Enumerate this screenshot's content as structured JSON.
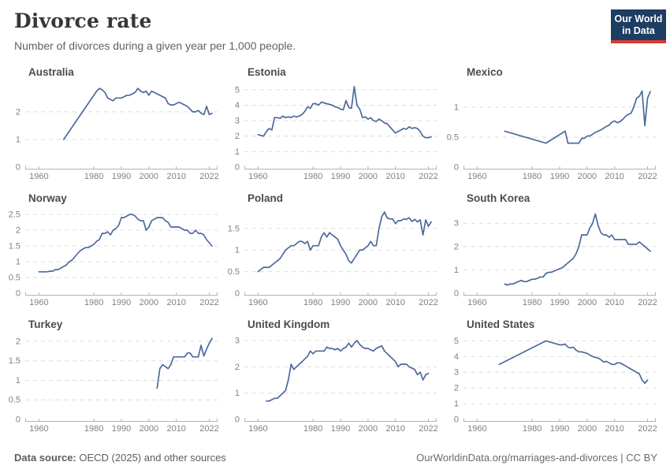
{
  "header": {
    "title": "Divorce rate",
    "subtitle": "Number of divorces during a given year per 1,000 people.",
    "logo": {
      "line1": "Our World",
      "line2": "in Data"
    }
  },
  "footer": {
    "source_label": "Data source:",
    "source_text": "OECD (2025) and other sources",
    "link_text": "OurWorldinData.org/marriages-and-divorces | CC BY"
  },
  "colors": {
    "line": "#4c6a9c",
    "grid": "#dcdcdc",
    "axis": "#b3b3b3",
    "tick": "#818181",
    "logo_bg": "#1d3d63",
    "logo_accent": "#d73c34"
  },
  "axis": {
    "xmin": 1955,
    "xmax": 2025
  },
  "chart_data": [
    {
      "type": "line",
      "title": "Australia",
      "yticks": [
        0,
        1,
        2
      ],
      "ymax": 3.08,
      "xticks": [
        1960,
        1980,
        1990,
        2000,
        2010,
        2022
      ],
      "x": [
        1969,
        1981,
        1982,
        1983,
        1984,
        1985,
        1986,
        1987,
        1988,
        1989,
        1990,
        1991,
        1992,
        1993,
        1994,
        1995,
        1996,
        1997,
        1998,
        1999,
        2000,
        2001,
        2002,
        2003,
        2004,
        2005,
        2006,
        2007,
        2008,
        2009,
        2010,
        2011,
        2012,
        2013,
        2014,
        2015,
        2016,
        2017,
        2018,
        2019,
        2020,
        2021,
        2022,
        2023
      ],
      "values": [
        1.0,
        2.75,
        2.85,
        2.8,
        2.7,
        2.5,
        2.45,
        2.4,
        2.5,
        2.5,
        2.5,
        2.55,
        2.6,
        2.6,
        2.65,
        2.7,
        2.85,
        2.75,
        2.7,
        2.75,
        2.6,
        2.75,
        2.7,
        2.65,
        2.6,
        2.55,
        2.5,
        2.3,
        2.25,
        2.25,
        2.3,
        2.35,
        2.3,
        2.25,
        2.2,
        2.1,
        2.0,
        2.0,
        2.05,
        1.95,
        1.9,
        2.2,
        1.9,
        1.95
      ]
    },
    {
      "type": "line",
      "title": "Estonia",
      "yticks": [
        0,
        1,
        2,
        3,
        4,
        5
      ],
      "ymax": 5.5,
      "xticks": [
        1960,
        1980,
        1990,
        2000,
        2010,
        2022
      ],
      "x": [
        1960,
        1961,
        1962,
        1963,
        1964,
        1965,
        1966,
        1967,
        1968,
        1969,
        1970,
        1971,
        1972,
        1973,
        1974,
        1975,
        1976,
        1977,
        1978,
        1979,
        1980,
        1981,
        1982,
        1983,
        1984,
        1985,
        1986,
        1987,
        1988,
        1989,
        1990,
        1991,
        1992,
        1993,
        1994,
        1995,
        1996,
        1997,
        1998,
        1999,
        2000,
        2001,
        2002,
        2003,
        2004,
        2005,
        2006,
        2007,
        2008,
        2009,
        2010,
        2011,
        2012,
        2013,
        2014,
        2015,
        2016,
        2017,
        2018,
        2019,
        2020,
        2021,
        2022,
        2023
      ],
      "values": [
        2.1,
        2.05,
        2.0,
        2.3,
        2.5,
        2.4,
        3.2,
        3.2,
        3.15,
        3.3,
        3.2,
        3.25,
        3.2,
        3.3,
        3.25,
        3.3,
        3.4,
        3.6,
        3.9,
        3.8,
        4.1,
        4.1,
        4.0,
        4.2,
        4.15,
        4.1,
        4.05,
        4.0,
        3.9,
        3.85,
        3.75,
        3.7,
        4.3,
        3.85,
        3.8,
        5.2,
        4.0,
        3.75,
        3.2,
        3.25,
        3.1,
        3.2,
        3.0,
        2.95,
        3.1,
        3.0,
        2.85,
        2.8,
        2.6,
        2.4,
        2.2,
        2.3,
        2.4,
        2.5,
        2.45,
        2.6,
        2.5,
        2.55,
        2.5,
        2.3,
        2.0,
        1.9,
        1.9,
        1.95
      ]
    },
    {
      "type": "line",
      "title": "Mexico",
      "yticks": [
        0,
        0.5,
        1
      ],
      "ymax": 1.42,
      "xticks": [
        1960,
        1980,
        1990,
        2000,
        2010,
        2022
      ],
      "x": [
        1970,
        1985,
        1992,
        1993,
        1997,
        1998,
        1999,
        2000,
        2001,
        2002,
        2003,
        2004,
        2005,
        2006,
        2007,
        2008,
        2009,
        2010,
        2011,
        2012,
        2013,
        2014,
        2015,
        2016,
        2017,
        2018,
        2019,
        2020,
        2021,
        2022,
        2023
      ],
      "values": [
        0.6,
        0.4,
        0.6,
        0.4,
        0.4,
        0.48,
        0.48,
        0.52,
        0.52,
        0.55,
        0.58,
        0.6,
        0.62,
        0.65,
        0.68,
        0.7,
        0.75,
        0.77,
        0.74,
        0.76,
        0.8,
        0.85,
        0.88,
        0.9,
        1.0,
        1.15,
        1.18,
        1.27,
        0.69,
        1.15,
        1.26
      ]
    },
    {
      "type": "line",
      "title": "Norway",
      "yticks": [
        0,
        0.5,
        1,
        1.5,
        2,
        2.5
      ],
      "ymax": 2.7,
      "xticks": [
        1960,
        1980,
        1990,
        2000,
        2010,
        2022
      ],
      "x": [
        1960,
        1961,
        1962,
        1963,
        1964,
        1965,
        1966,
        1967,
        1968,
        1969,
        1970,
        1971,
        1972,
        1973,
        1974,
        1975,
        1976,
        1977,
        1978,
        1979,
        1980,
        1981,
        1982,
        1983,
        1984,
        1985,
        1986,
        1987,
        1988,
        1989,
        1990,
        1991,
        1992,
        1993,
        1994,
        1995,
        1996,
        1997,
        1998,
        1999,
        2000,
        2001,
        2002,
        2003,
        2004,
        2005,
        2006,
        2007,
        2008,
        2009,
        2010,
        2011,
        2012,
        2013,
        2014,
        2015,
        2016,
        2017,
        2018,
        2019,
        2020,
        2021,
        2022,
        2023
      ],
      "values": [
        0.68,
        0.68,
        0.68,
        0.68,
        0.7,
        0.7,
        0.75,
        0.75,
        0.8,
        0.85,
        0.9,
        1.0,
        1.05,
        1.15,
        1.25,
        1.35,
        1.4,
        1.45,
        1.45,
        1.5,
        1.55,
        1.65,
        1.7,
        1.9,
        1.9,
        1.95,
        1.85,
        2.0,
        2.05,
        2.15,
        2.4,
        2.4,
        2.45,
        2.5,
        2.5,
        2.45,
        2.35,
        2.3,
        2.3,
        2.0,
        2.1,
        2.3,
        2.35,
        2.4,
        2.4,
        2.4,
        2.3,
        2.25,
        2.1,
        2.1,
        2.1,
        2.1,
        2.05,
        2.0,
        2.0,
        1.9,
        1.9,
        2.0,
        1.9,
        1.9,
        1.85,
        1.7,
        1.6,
        1.5
      ]
    },
    {
      "type": "line",
      "title": "Poland",
      "yticks": [
        0,
        0.5,
        1,
        1.5
      ],
      "ymax": 1.97,
      "xticks": [
        1960,
        1980,
        1990,
        2000,
        2010,
        2022
      ],
      "x": [
        1960,
        1961,
        1962,
        1963,
        1964,
        1965,
        1966,
        1967,
        1968,
        1969,
        1970,
        1971,
        1972,
        1973,
        1974,
        1975,
        1976,
        1977,
        1978,
        1979,
        1980,
        1981,
        1982,
        1983,
        1984,
        1985,
        1986,
        1987,
        1988,
        1989,
        1990,
        1991,
        1992,
        1993,
        1994,
        1995,
        1996,
        1997,
        1998,
        1999,
        2000,
        2001,
        2002,
        2003,
        2004,
        2005,
        2006,
        2007,
        2008,
        2009,
        2010,
        2011,
        2012,
        2013,
        2014,
        2015,
        2016,
        2017,
        2018,
        2019,
        2020,
        2021,
        2022,
        2023
      ],
      "values": [
        0.5,
        0.55,
        0.6,
        0.6,
        0.6,
        0.65,
        0.7,
        0.75,
        0.8,
        0.9,
        1.0,
        1.05,
        1.1,
        1.1,
        1.15,
        1.2,
        1.2,
        1.15,
        1.2,
        1.0,
        1.1,
        1.1,
        1.1,
        1.3,
        1.4,
        1.3,
        1.4,
        1.35,
        1.3,
        1.25,
        1.1,
        1.0,
        0.9,
        0.75,
        0.7,
        0.8,
        0.9,
        1.0,
        1.0,
        1.05,
        1.1,
        1.2,
        1.1,
        1.1,
        1.5,
        1.77,
        1.88,
        1.74,
        1.72,
        1.72,
        1.61,
        1.68,
        1.68,
        1.72,
        1.71,
        1.75,
        1.66,
        1.71,
        1.65,
        1.7,
        1.35,
        1.7,
        1.55,
        1.65
      ]
    },
    {
      "type": "line",
      "title": "South Korea",
      "yticks": [
        0,
        1,
        2,
        3
      ],
      "ymax": 3.65,
      "xticks": [
        1960,
        1980,
        1990,
        2000,
        2010,
        2022
      ],
      "x": [
        1970,
        1971,
        1972,
        1973,
        1974,
        1975,
        1976,
        1977,
        1978,
        1979,
        1980,
        1981,
        1982,
        1983,
        1984,
        1985,
        1986,
        1987,
        1988,
        1989,
        1990,
        1991,
        1992,
        1993,
        1994,
        1995,
        1996,
        1997,
        1998,
        1999,
        2000,
        2001,
        2002,
        2003,
        2004,
        2005,
        2006,
        2007,
        2008,
        2009,
        2010,
        2011,
        2012,
        2013,
        2014,
        2015,
        2016,
        2017,
        2018,
        2019,
        2020,
        2021,
        2022,
        2023
      ],
      "values": [
        0.4,
        0.35,
        0.4,
        0.4,
        0.45,
        0.5,
        0.55,
        0.5,
        0.5,
        0.55,
        0.6,
        0.6,
        0.65,
        0.7,
        0.7,
        0.85,
        0.9,
        0.9,
        0.95,
        1.0,
        1.05,
        1.1,
        1.2,
        1.3,
        1.4,
        1.5,
        1.7,
        2.0,
        2.5,
        2.5,
        2.5,
        2.8,
        3.0,
        3.4,
        2.9,
        2.6,
        2.5,
        2.5,
        2.4,
        2.5,
        2.3,
        2.3,
        2.3,
        2.3,
        2.3,
        2.1,
        2.1,
        2.1,
        2.1,
        2.2,
        2.1,
        2.0,
        1.9,
        1.8
      ]
    },
    {
      "type": "line",
      "title": "Turkey",
      "yticks": [
        0,
        0.5,
        1,
        1.5,
        2
      ],
      "ymax": 2.18,
      "xticks": [
        1960,
        1980,
        1990,
        2000,
        2010,
        2022
      ],
      "x": [
        2003,
        2004,
        2005,
        2006,
        2007,
        2008,
        2009,
        2010,
        2011,
        2012,
        2013,
        2014,
        2015,
        2016,
        2017,
        2018,
        2019,
        2020,
        2021,
        2022,
        2023
      ],
      "values": [
        0.8,
        1.3,
        1.4,
        1.35,
        1.3,
        1.4,
        1.6,
        1.6,
        1.6,
        1.6,
        1.6,
        1.7,
        1.7,
        1.6,
        1.6,
        1.6,
        1.9,
        1.62,
        1.8,
        1.95,
        2.07
      ]
    },
    {
      "type": "line",
      "title": "United Kingdom",
      "yticks": [
        0,
        1,
        2,
        3
      ],
      "ymax": 3.24,
      "xticks": [
        1960,
        1980,
        1990,
        2000,
        2010,
        2022
      ],
      "x": [
        1963,
        1964,
        1965,
        1966,
        1967,
        1968,
        1969,
        1970,
        1971,
        1972,
        1973,
        1974,
        1975,
        1976,
        1977,
        1978,
        1979,
        1980,
        1981,
        1982,
        1983,
        1984,
        1985,
        1986,
        1987,
        1988,
        1989,
        1990,
        1991,
        1992,
        1993,
        1994,
        1995,
        1996,
        1997,
        1998,
        1999,
        2000,
        2001,
        2002,
        2003,
        2004,
        2005,
        2006,
        2007,
        2008,
        2009,
        2010,
        2011,
        2012,
        2013,
        2014,
        2015,
        2016,
        2017,
        2018,
        2019,
        2020,
        2021,
        2022
      ],
      "values": [
        0.7,
        0.7,
        0.75,
        0.8,
        0.8,
        0.9,
        1.0,
        1.1,
        1.5,
        2.1,
        1.9,
        2.0,
        2.1,
        2.2,
        2.3,
        2.4,
        2.6,
        2.5,
        2.6,
        2.6,
        2.6,
        2.6,
        2.75,
        2.7,
        2.7,
        2.65,
        2.7,
        2.6,
        2.7,
        2.75,
        2.9,
        2.75,
        2.9,
        3.0,
        2.85,
        2.75,
        2.7,
        2.7,
        2.65,
        2.6,
        2.7,
        2.75,
        2.8,
        2.6,
        2.5,
        2.4,
        2.3,
        2.2,
        2.0,
        2.1,
        2.1,
        2.1,
        2.0,
        1.95,
        1.9,
        1.7,
        1.8,
        1.5,
        1.7,
        1.75
      ]
    },
    {
      "type": "line",
      "title": "United States",
      "yticks": [
        0,
        1,
        2,
        3,
        4,
        5
      ],
      "ymax": 5.42,
      "xticks": [
        1960,
        1980,
        1990,
        2000,
        2010,
        2022
      ],
      "x": [
        1968,
        1985,
        1986,
        1987,
        1988,
        1989,
        1990,
        1991,
        1992,
        1993,
        1994,
        1995,
        1996,
        1997,
        1998,
        1999,
        2000,
        2001,
        2002,
        2003,
        2004,
        2005,
        2006,
        2007,
        2008,
        2009,
        2010,
        2011,
        2012,
        2013,
        2014,
        2015,
        2016,
        2017,
        2018,
        2019,
        2020,
        2021,
        2022
      ],
      "values": [
        3.5,
        5.0,
        4.95,
        4.9,
        4.85,
        4.8,
        4.75,
        4.75,
        4.8,
        4.6,
        4.55,
        4.6,
        4.4,
        4.3,
        4.3,
        4.25,
        4.2,
        4.1,
        4.0,
        3.95,
        3.9,
        3.8,
        3.65,
        3.7,
        3.6,
        3.5,
        3.5,
        3.6,
        3.6,
        3.5,
        3.4,
        3.3,
        3.2,
        3.1,
        3.0,
        2.9,
        2.5,
        2.3,
        2.5
      ]
    }
  ]
}
